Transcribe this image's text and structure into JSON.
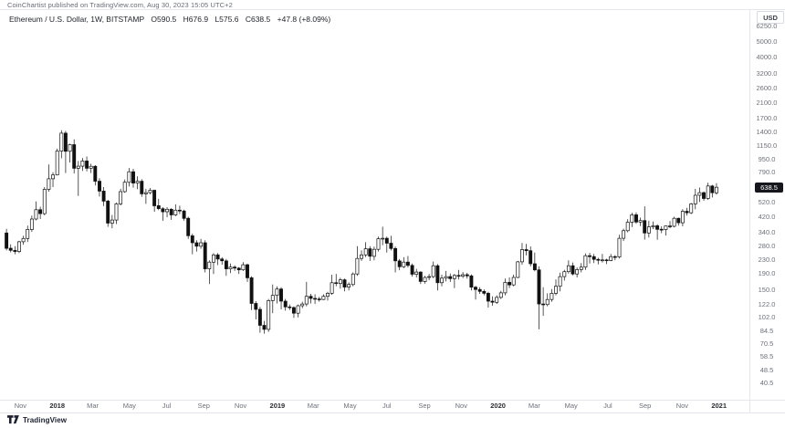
{
  "page": {
    "published_line": "CoinChartist published on TradingView.com, Aug 30, 2023 15:05 UTC+2",
    "footer_logo_text": "TradingView"
  },
  "symbol_info": {
    "title": "Ethereum / U.S. Dollar, 1W, BITSTAMP",
    "open": "O590.5",
    "high": "H676.9",
    "low": "L575.6",
    "close": "C638.5",
    "change": "+47.8 (+8.09%)"
  },
  "price_axis": {
    "currency": "USD",
    "ticks": [
      {
        "label": "6250.0",
        "value": 6250
      },
      {
        "label": "5000.0",
        "value": 5000
      },
      {
        "label": "4000.0",
        "value": 4000
      },
      {
        "label": "3200.0",
        "value": 3200
      },
      {
        "label": "2600.0",
        "value": 2600
      },
      {
        "label": "2100.0",
        "value": 2100
      },
      {
        "label": "1700.0",
        "value": 1700
      },
      {
        "label": "1400.0",
        "value": 1400
      },
      {
        "label": "1150.0",
        "value": 1150
      },
      {
        "label": "950.0",
        "value": 950
      },
      {
        "label": "790.0",
        "value": 790
      },
      {
        "label": "520.0",
        "value": 520
      },
      {
        "label": "420.0",
        "value": 420
      },
      {
        "label": "340.0",
        "value": 340
      },
      {
        "label": "280.0",
        "value": 280
      },
      {
        "label": "230.0",
        "value": 230
      },
      {
        "label": "190.0",
        "value": 190
      },
      {
        "label": "150.0",
        "value": 150
      },
      {
        "label": "122.0",
        "value": 122
      },
      {
        "label": "102.0",
        "value": 102
      },
      {
        "label": "84.5",
        "value": 84.5
      },
      {
        "label": "70.5",
        "value": 70.5
      },
      {
        "label": "58.5",
        "value": 58.5
      },
      {
        "label": "48.5",
        "value": 48.5
      },
      {
        "label": "40.5",
        "value": 40.5
      }
    ],
    "last_price_badge": {
      "label": "638.5",
      "value": 638.5,
      "bg": "#16171c",
      "fg": "#ffffff"
    }
  },
  "time_axis": {
    "labels": [
      {
        "label": "Nov",
        "week_index": 3.3,
        "is_year": false
      },
      {
        "label": "2018",
        "week_index": 12,
        "is_year": true
      },
      {
        "label": "Mar",
        "week_index": 20.4,
        "is_year": false
      },
      {
        "label": "May",
        "week_index": 29.1,
        "is_year": false
      },
      {
        "label": "Jul",
        "week_index": 37.9,
        "is_year": false
      },
      {
        "label": "Sep",
        "week_index": 46.7,
        "is_year": false
      },
      {
        "label": "Nov",
        "week_index": 55.4,
        "is_year": false
      },
      {
        "label": "2019",
        "week_index": 64.1,
        "is_year": true
      },
      {
        "label": "Mar",
        "week_index": 72.6,
        "is_year": false
      },
      {
        "label": "May",
        "week_index": 81.3,
        "is_year": false
      },
      {
        "label": "Jul",
        "week_index": 90,
        "is_year": false
      },
      {
        "label": "Sep",
        "week_index": 98.9,
        "is_year": false
      },
      {
        "label": "Nov",
        "week_index": 107.6,
        "is_year": false
      },
      {
        "label": "2020",
        "week_index": 116.3,
        "is_year": true
      },
      {
        "label": "Mar",
        "week_index": 124.9,
        "is_year": false
      },
      {
        "label": "May",
        "week_index": 133.6,
        "is_year": false
      },
      {
        "label": "Jul",
        "week_index": 142.3,
        "is_year": false
      },
      {
        "label": "Sep",
        "week_index": 151.1,
        "is_year": false
      },
      {
        "label": "Nov",
        "week_index": 159.9,
        "is_year": false
      },
      {
        "label": "2021",
        "week_index": 168.6,
        "is_year": true
      }
    ]
  },
  "chart_data": {
    "type": "candlestick",
    "title": "Ethereum / U.S. Dollar, 1W, BITSTAMP",
    "scale": "log",
    "x_unit": "week",
    "x_range_labels": [
      "Nov 2017",
      "2021"
    ],
    "ylim": [
      40.5,
      6250
    ],
    "grid": false,
    "up_color": "#ffffff",
    "down_color": "#111111",
    "border_color": "#111111",
    "last_close": 638.5,
    "candles_ohlc": [
      [
        335,
        355,
        262,
        270
      ],
      [
        270,
        285,
        255,
        262
      ],
      [
        262,
        278,
        248,
        258
      ],
      [
        258,
        300,
        252,
        296
      ],
      [
        296,
        322,
        284,
        310
      ],
      [
        310,
        372,
        295,
        352
      ],
      [
        352,
        428,
        340,
        408
      ],
      [
        408,
        522,
        400,
        465
      ],
      [
        465,
        485,
        408,
        440
      ],
      [
        440,
        640,
        430,
        620
      ],
      [
        620,
        880,
        600,
        720
      ],
      [
        720,
        790,
        640,
        760
      ],
      [
        760,
        1100,
        755,
        1065
      ],
      [
        1065,
        1428,
        960,
        1370
      ],
      [
        1370,
        1415,
        780,
        1060
      ],
      [
        1060,
        1180,
        905,
        1165
      ],
      [
        1165,
        1255,
        775,
        835
      ],
      [
        835,
        925,
        565,
        860
      ],
      [
        860,
        965,
        805,
        925
      ],
      [
        925,
        985,
        800,
        835
      ],
      [
        835,
        890,
        780,
        858
      ],
      [
        858,
        872,
        655,
        695
      ],
      [
        695,
        725,
        560,
        605
      ],
      [
        605,
        640,
        490,
        525
      ],
      [
        525,
        535,
        365,
        385
      ],
      [
        385,
        432,
        358,
        402
      ],
      [
        402,
        515,
        380,
        505
      ],
      [
        505,
        625,
        495,
        600
      ],
      [
        600,
        712,
        590,
        685
      ],
      [
        685,
        838,
        645,
        795
      ],
      [
        795,
        828,
        635,
        678
      ],
      [
        678,
        745,
        622,
        695
      ],
      [
        695,
        715,
        558,
        582
      ],
      [
        582,
        625,
        505,
        592
      ],
      [
        592,
        632,
        578,
        612
      ],
      [
        612,
        618,
        452,
        492
      ],
      [
        492,
        542,
        462,
        472
      ],
      [
        472,
        482,
        398,
        452
      ],
      [
        452,
        482,
        418,
        468
      ],
      [
        468,
        475,
        403,
        432
      ],
      [
        432,
        502,
        425,
        462
      ],
      [
        462,
        492,
        438,
        457
      ],
      [
        457,
        465,
        398,
        412
      ],
      [
        412,
        422,
        308,
        322
      ],
      [
        322,
        332,
        248,
        292
      ],
      [
        292,
        302,
        258,
        278
      ],
      [
        278,
        308,
        268,
        292
      ],
      [
        292,
        302,
        192,
        202
      ],
      [
        202,
        228,
        163,
        222
      ],
      [
        222,
        252,
        188,
        246
      ],
      [
        246,
        252,
        213,
        232
      ],
      [
        232,
        238,
        214,
        226
      ],
      [
        226,
        232,
        183,
        202
      ],
      [
        202,
        218,
        190,
        207
      ],
      [
        207,
        212,
        196,
        204
      ],
      [
        204,
        207,
        188,
        199
      ],
      [
        199,
        222,
        196,
        214
      ],
      [
        214,
        217,
        168,
        178
      ],
      [
        178,
        182,
        113,
        124
      ],
      [
        124,
        128,
        99,
        114
      ],
      [
        114,
        118,
        82,
        91
      ],
      [
        91,
        97,
        81,
        86
      ],
      [
        86,
        132,
        83,
        129
      ],
      [
        129,
        162,
        108,
        139
      ],
      [
        139,
        158,
        124,
        152
      ],
      [
        152,
        156,
        114,
        128
      ],
      [
        128,
        132,
        112,
        118
      ],
      [
        118,
        122,
        113,
        117
      ],
      [
        117,
        119,
        101,
        108
      ],
      [
        108,
        122,
        102,
        120
      ],
      [
        120,
        127,
        116,
        123
      ],
      [
        123,
        168,
        119,
        137
      ],
      [
        137,
        142,
        124,
        133
      ],
      [
        133,
        141,
        123,
        132
      ],
      [
        132,
        136,
        127,
        131
      ],
      [
        131,
        141,
        130,
        137
      ],
      [
        137,
        146,
        129,
        143
      ],
      [
        143,
        186,
        140,
        166
      ],
      [
        166,
        188,
        158,
        164
      ],
      [
        164,
        178,
        153,
        173
      ],
      [
        173,
        176,
        147,
        156
      ],
      [
        156,
        167,
        149,
        162
      ],
      [
        162,
        192,
        158,
        188
      ],
      [
        188,
        278,
        183,
        234
      ],
      [
        234,
        262,
        226,
        246
      ],
      [
        246,
        294,
        238,
        268
      ],
      [
        268,
        278,
        226,
        241
      ],
      [
        241,
        276,
        228,
        266
      ],
      [
        266,
        318,
        258,
        309
      ],
      [
        309,
        366,
        282,
        311
      ],
      [
        311,
        318,
        254,
        290
      ],
      [
        290,
        322,
        262,
        269
      ],
      [
        269,
        277,
        192,
        226
      ],
      [
        226,
        232,
        198,
        208
      ],
      [
        208,
        238,
        204,
        222
      ],
      [
        222,
        242,
        206,
        212
      ],
      [
        212,
        218,
        181,
        187
      ],
      [
        187,
        202,
        179,
        193
      ],
      [
        193,
        195,
        163,
        169
      ],
      [
        169,
        183,
        164,
        179
      ],
      [
        179,
        188,
        172,
        181
      ],
      [
        181,
        224,
        177,
        211
      ],
      [
        211,
        216,
        149,
        166
      ],
      [
        166,
        186,
        158,
        177
      ],
      [
        177,
        196,
        169,
        181
      ],
      [
        181,
        189,
        168,
        176
      ],
      [
        176,
        188,
        154,
        184
      ],
      [
        184,
        199,
        174,
        182
      ],
      [
        182,
        193,
        177,
        186
      ],
      [
        186,
        191,
        176,
        183
      ],
      [
        183,
        187,
        149,
        156
      ],
      [
        156,
        159,
        131,
        151
      ],
      [
        151,
        156,
        142,
        147
      ],
      [
        147,
        151,
        139,
        143
      ],
      [
        143,
        146,
        117,
        128
      ],
      [
        128,
        137,
        120,
        126
      ],
      [
        126,
        139,
        123,
        135
      ],
      [
        135,
        148,
        132,
        144
      ],
      [
        144,
        176,
        139,
        167
      ],
      [
        167,
        179,
        154,
        161
      ],
      [
        161,
        186,
        158,
        179
      ],
      [
        179,
        226,
        177,
        223
      ],
      [
        223,
        291,
        214,
        265
      ],
      [
        265,
        287,
        244,
        261
      ],
      [
        261,
        277,
        209,
        217
      ],
      [
        217,
        254,
        195,
        199
      ],
      [
        199,
        209,
        86,
        123
      ],
      [
        123,
        156,
        104,
        122
      ],
      [
        122,
        143,
        119,
        131
      ],
      [
        131,
        152,
        127,
        143
      ],
      [
        143,
        174,
        139,
        158
      ],
      [
        158,
        191,
        147,
        181
      ],
      [
        181,
        199,
        171,
        194
      ],
      [
        194,
        228,
        189,
        211
      ],
      [
        211,
        221,
        184,
        188
      ],
      [
        188,
        206,
        179,
        200
      ],
      [
        200,
        219,
        192,
        207
      ],
      [
        207,
        251,
        199,
        243
      ],
      [
        243,
        253,
        218,
        240
      ],
      [
        240,
        249,
        219,
        231
      ],
      [
        231,
        236,
        215,
        228
      ],
      [
        228,
        249,
        221,
        229
      ],
      [
        229,
        233,
        216,
        227
      ],
      [
        227,
        249,
        225,
        240
      ],
      [
        240,
        245,
        228,
        239
      ],
      [
        239,
        327,
        234,
        311
      ],
      [
        311,
        356,
        299,
        346
      ],
      [
        346,
        407,
        338,
        390
      ],
      [
        390,
        446,
        364,
        433
      ],
      [
        433,
        448,
        381,
        391
      ],
      [
        391,
        416,
        369,
        399
      ],
      [
        399,
        488,
        305,
        335
      ],
      [
        335,
        398,
        314,
        365
      ],
      [
        365,
        394,
        354,
        371
      ],
      [
        371,
        379,
        304,
        353
      ],
      [
        353,
        368,
        334,
        352
      ],
      [
        352,
        371,
        323,
        370
      ],
      [
        370,
        396,
        358,
        368
      ],
      [
        368,
        421,
        363,
        412
      ],
      [
        412,
        416,
        372,
        387
      ],
      [
        387,
        469,
        368,
        455
      ],
      [
        455,
        477,
        428,
        445
      ],
      [
        445,
        512,
        438,
        505
      ],
      [
        505,
        624,
        468,
        570
      ],
      [
        570,
        636,
        518,
        592
      ],
      [
        592,
        602,
        528,
        545
      ],
      [
        545,
        681,
        534,
        650
      ],
      [
        650,
        660,
        553,
        590.7
      ],
      [
        590.5,
        676.9,
        575.6,
        638.5
      ]
    ]
  }
}
